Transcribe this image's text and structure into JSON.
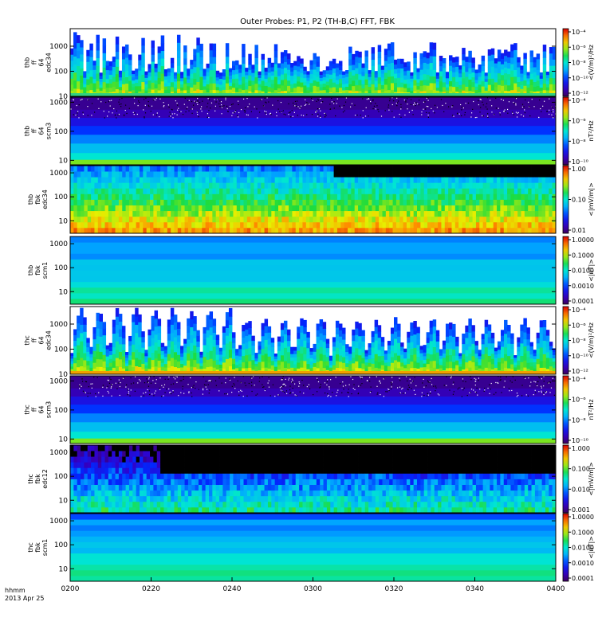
{
  "chart_data": {
    "type": "heatmap",
    "title": "Outer Probes: P1, P2 (TH-B,C) FFT, FBK",
    "x": {
      "tick_labels": [
        "0200",
        "0220",
        "0240",
        "0300",
        "0320",
        "0340",
        "0400"
      ],
      "range": [
        "02:00",
        "04:00"
      ],
      "footer_label": "hhmm",
      "date": "2013 Apr 25"
    },
    "panels": [
      {
        "name": "thb ff 64 edc34",
        "ylabel": [
          "thb",
          "ff",
          "64",
          "edc34"
        ],
        "yticks": [
          "1000",
          "100",
          "10"
        ],
        "yrange": [
          10,
          5000
        ],
        "ylog": true,
        "colorbar": {
          "label": "<(V/m)²/Hz",
          "ticks": [
            "10⁻⁴",
            "10⁻⁶",
            "10⁻⁸",
            "10⁻¹⁰",
            "10⁻¹²"
          ],
          "log": true
        },
        "pattern": "spiky"
      },
      {
        "name": "thb ff 64 scm3",
        "ylabel": [
          "thb",
          "ff",
          "64",
          "scm3"
        ],
        "yticks": [
          "1000",
          "100",
          "10"
        ],
        "yrange": [
          7,
          1500
        ],
        "ylog": true,
        "colorbar": {
          "label": "nT²/Hz",
          "ticks": [
            "10⁻⁴",
            "10⁻⁶",
            "10⁻⁸",
            "10⁻¹⁰"
          ],
          "log": true
        },
        "pattern": "scm"
      },
      {
        "name": "thb fbk edc34",
        "ylabel": [
          "thb",
          "fbk",
          "edc34"
        ],
        "yticks": [
          "1000",
          "100",
          "10"
        ],
        "yrange": [
          3,
          2000
        ],
        "ylog": true,
        "colorbar": {
          "label": "<|mV/m|>",
          "ticks": [
            "1.00",
            "0.10",
            "0.01"
          ],
          "log": true
        },
        "pattern": "fbkE_hot"
      },
      {
        "name": "thb fbk scm1",
        "ylabel": [
          "thb",
          "fbk",
          "scm1"
        ],
        "yticks": [
          "1000",
          "100",
          "10"
        ],
        "yrange": [
          3,
          2000
        ],
        "ylog": true,
        "colorbar": {
          "label": "<|nT|>",
          "ticks": [
            "1.0000",
            "0.1000",
            "0.0100",
            "0.0010",
            "0.0001"
          ],
          "log": true
        },
        "pattern": "fbkB"
      },
      {
        "name": "thc ff 64 edc34",
        "ylabel": [
          "thc",
          "ff",
          "64",
          "edc34"
        ],
        "yticks": [
          "1000",
          "100",
          "10"
        ],
        "yrange": [
          10,
          5000
        ],
        "ylog": true,
        "colorbar": {
          "label": "<(V/m)²/Hz",
          "ticks": [
            "10⁻⁴",
            "10⁻⁶",
            "10⁻⁸",
            "10⁻¹⁰",
            "10⁻¹²"
          ],
          "log": true
        },
        "pattern": "spiky2"
      },
      {
        "name": "thc ff 64 scm3",
        "ylabel": [
          "thc",
          "ff",
          "64",
          "scm3"
        ],
        "yticks": [
          "1000",
          "100",
          "10"
        ],
        "yrange": [
          7,
          1500
        ],
        "ylog": true,
        "colorbar": {
          "label": "nT²/Hz",
          "ticks": [
            "10⁻⁴",
            "10⁻⁶",
            "10⁻⁸",
            "10⁻¹⁰"
          ],
          "log": true
        },
        "pattern": "scm"
      },
      {
        "name": "thc fbk edc12",
        "ylabel": [
          "thc",
          "fbk",
          "edc12"
        ],
        "yticks": [
          "1000",
          "100",
          "10"
        ],
        "yrange": [
          3,
          2000
        ],
        "ylog": true,
        "colorbar": {
          "label": "<|mV/m|>",
          "ticks": [
            "1.000",
            "0.100",
            "0.010",
            "0.001"
          ],
          "log": true
        },
        "pattern": "fbkE_dark"
      },
      {
        "name": "thc fbk scm1",
        "ylabel": [
          "thc",
          "fbk",
          "scm1"
        ],
        "yticks": [
          "1000",
          "100",
          "10"
        ],
        "yrange": [
          3,
          2000
        ],
        "ylog": true,
        "colorbar": {
          "label": "<|nT|>",
          "ticks": [
            "1.0000",
            "0.1000",
            "0.0100",
            "0.0010",
            "0.0001"
          ],
          "log": true
        },
        "pattern": "fbkB"
      }
    ]
  }
}
